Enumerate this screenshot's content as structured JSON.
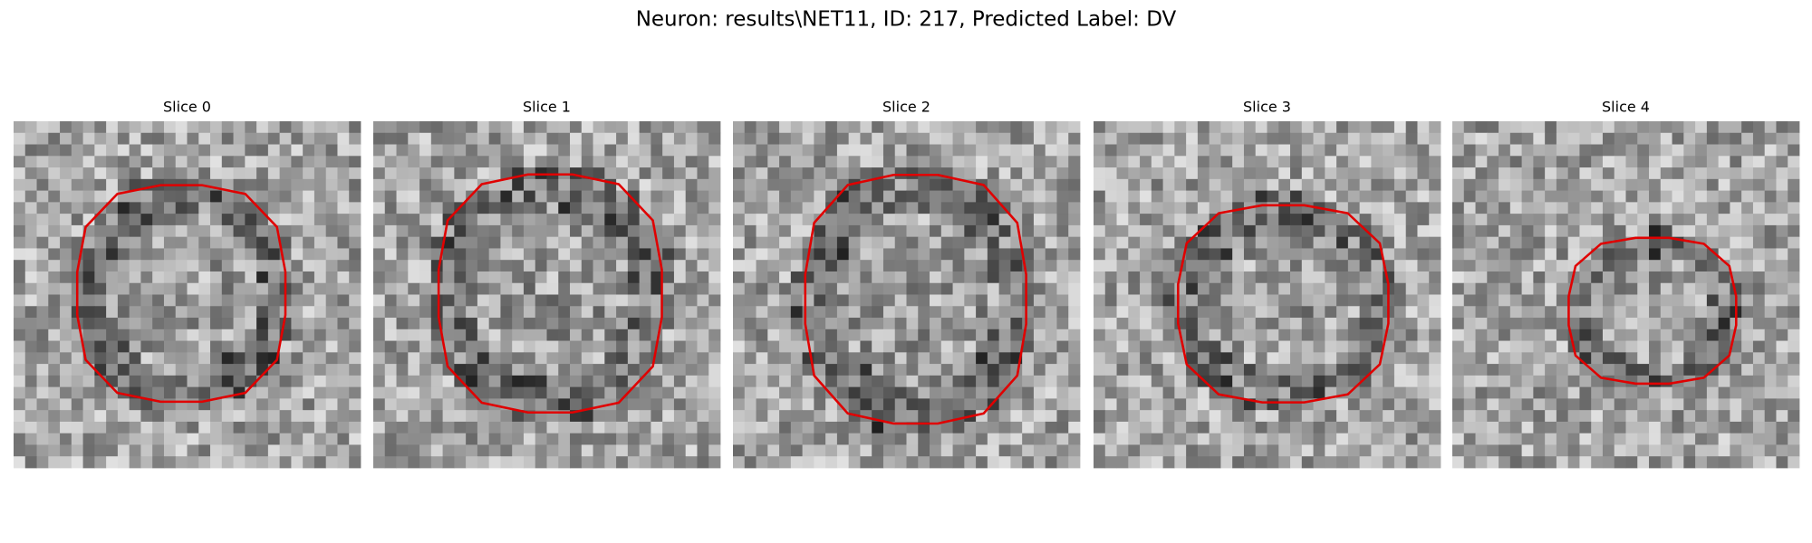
{
  "figure": {
    "title": "Neuron: results\\NET11, ID: 217, Predicted Label: DV",
    "panels": [
      {
        "title": "Slice 0"
      },
      {
        "title": "Slice 1"
      },
      {
        "title": "Slice 2"
      },
      {
        "title": "Slice 3"
      },
      {
        "title": "Slice 4"
      }
    ]
  }
}
